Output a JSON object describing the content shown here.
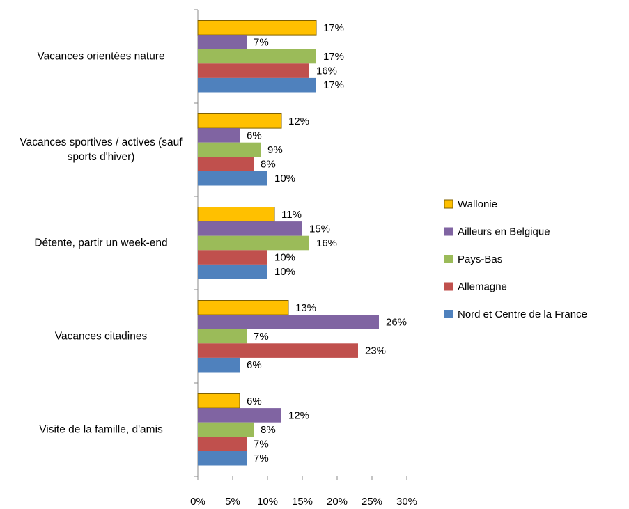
{
  "chart_data": {
    "type": "barh",
    "categories": [
      "Vacances orientées nature",
      "Vacances sportives / actives (sauf sports d'hiver)",
      "Détente, partir un week-end",
      "Vacances citadines",
      "Visite de la famille, d'amis"
    ],
    "series": [
      {
        "name": "Wallonie",
        "color": "#ffc000",
        "values": [
          17,
          12,
          11,
          13,
          6
        ],
        "value_labels": [
          "17%",
          "12%",
          "11%",
          "13%",
          "6%"
        ]
      },
      {
        "name": "Ailleurs en Belgique",
        "color": "#8064a2",
        "values": [
          7,
          6,
          15,
          26,
          12
        ],
        "value_labels": [
          "7%",
          "6%",
          "15%",
          "26%",
          "12%"
        ]
      },
      {
        "name": "Pays-Bas",
        "color": "#9bbb59",
        "values": [
          17,
          9,
          16,
          7,
          8
        ],
        "value_labels": [
          "17%",
          "9%",
          "16%",
          "7%",
          "8%"
        ]
      },
      {
        "name": "Allemagne",
        "color": "#c0504d",
        "values": [
          16,
          8,
          10,
          23,
          7
        ],
        "value_labels": [
          "16%",
          "8%",
          "10%",
          "23%",
          "7%"
        ]
      },
      {
        "name": "Nord et Centre de la France",
        "color": "#4f81bd",
        "values": [
          17,
          10,
          10,
          6,
          7
        ],
        "value_labels": [
          "17%",
          "10%",
          "10%",
          "6%",
          "7%"
        ]
      }
    ],
    "xlim": [
      0,
      30
    ],
    "xticks": [
      {
        "value": 0,
        "label": "0%"
      },
      {
        "value": 5,
        "label": "5%"
      },
      {
        "value": 10,
        "label": "10%"
      },
      {
        "value": 15,
        "label": "15%"
      },
      {
        "value": 20,
        "label": "20%"
      },
      {
        "value": 25,
        "label": "25%"
      },
      {
        "value": 30,
        "label": "30%"
      }
    ],
    "legend": "right"
  }
}
